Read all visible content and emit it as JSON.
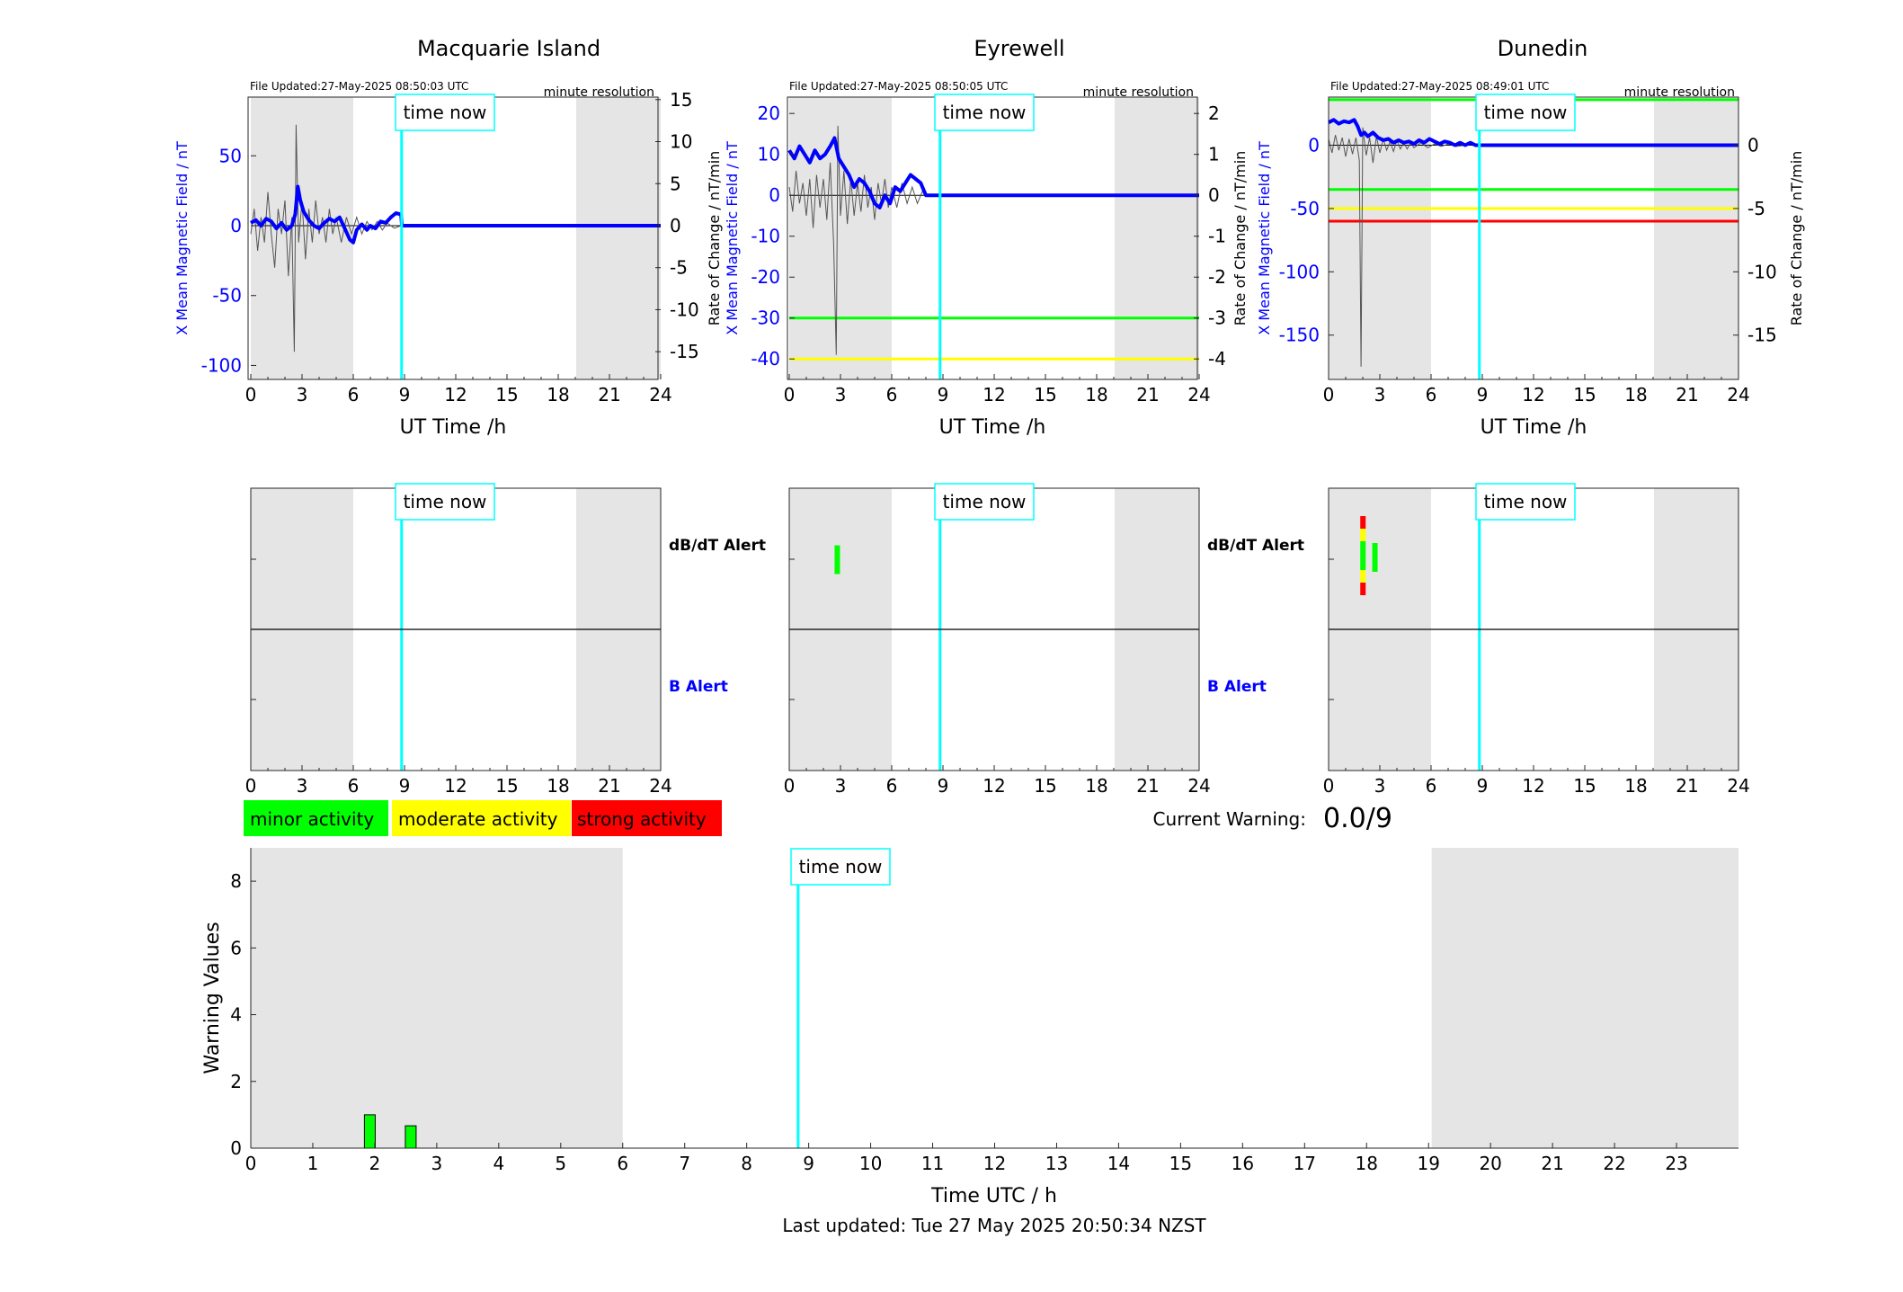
{
  "labels": {
    "time_now": "time now",
    "minute_resolution": "minute resolution",
    "utc_xlabel": "UT Time /h",
    "left_ylabel": "X Mean Magnetic Field / nT",
    "right_ylabel": "Rate of Change / nT/min",
    "dbdt_alert": "dB/dT Alert",
    "b_alert": "B Alert",
    "current_warning_label": "Current Warning:",
    "current_warning_value": "0.0/9",
    "bottom_xlabel": "Time UTC / h",
    "bottom_ylabel": "Warning Values",
    "last_updated": "Last updated: Tue 27 May 2025 20:50:34 NZST"
  },
  "legend": [
    {
      "label": "minor activity",
      "color": "#00ff00"
    },
    {
      "label": "moderate activity",
      "color": "#ffff00"
    },
    {
      "label": "strong activity",
      "color": "#ff0000"
    }
  ],
  "colors": {
    "field": "#0000ff",
    "rate": "#555555",
    "time_now": "#00ffff",
    "night_shading": "#e5e5e5",
    "green_threshold": "#00ff00",
    "yellow_threshold": "#ffff00",
    "red_threshold": "#ff0000"
  },
  "chart_data": [
    {
      "type": "line",
      "title": "Macquarie Island",
      "file_updated": "File Updated:27-May-2025 08:50:03 UTC",
      "xlabel": "UT Time /h",
      "ylabel": "X Mean Magnetic Field / nT",
      "ylabel_right": "Rate of Change / nT/min",
      "xlim": [
        0,
        24
      ],
      "ylim": [
        -110,
        92
      ],
      "ylim_right": [
        -18.3,
        15.3
      ],
      "xticks": [
        0,
        3,
        6,
        9,
        12,
        15,
        18,
        21,
        24
      ],
      "yticks": [
        -100,
        -50,
        0,
        50
      ],
      "yticks_right": [
        -15,
        -10,
        -5,
        0,
        5,
        10,
        15
      ],
      "night": [
        [
          0,
          6
        ],
        [
          19.05,
          24
        ]
      ],
      "time_now": 8.83,
      "thresholds": [],
      "field": [
        [
          0,
          2
        ],
        [
          0.3,
          4
        ],
        [
          0.6,
          0
        ],
        [
          0.9,
          5
        ],
        [
          1.2,
          3
        ],
        [
          1.5,
          -2
        ],
        [
          1.8,
          2
        ],
        [
          2.1,
          -3
        ],
        [
          2.4,
          0
        ],
        [
          2.6,
          8
        ],
        [
          2.75,
          28
        ],
        [
          2.9,
          18
        ],
        [
          3.1,
          10
        ],
        [
          3.4,
          4
        ],
        [
          3.7,
          0
        ],
        [
          4.0,
          -2
        ],
        [
          4.3,
          2
        ],
        [
          4.6,
          5
        ],
        [
          4.9,
          3
        ],
        [
          5.2,
          6
        ],
        [
          5.5,
          -2
        ],
        [
          5.8,
          -10
        ],
        [
          6.0,
          -12
        ],
        [
          6.2,
          -3
        ],
        [
          6.5,
          1
        ],
        [
          6.8,
          -3
        ],
        [
          7.0,
          0
        ],
        [
          7.3,
          -2
        ],
        [
          7.6,
          3
        ],
        [
          7.9,
          2
        ],
        [
          8.2,
          6
        ],
        [
          8.5,
          9
        ],
        [
          8.8,
          8
        ],
        [
          8.85,
          0
        ],
        [
          24,
          0
        ]
      ],
      "rate": [
        [
          0,
          -1
        ],
        [
          0.2,
          2
        ],
        [
          0.4,
          -3
        ],
        [
          0.6,
          1
        ],
        [
          0.8,
          -2
        ],
        [
          1.0,
          4
        ],
        [
          1.2,
          -1
        ],
        [
          1.4,
          -5
        ],
        [
          1.6,
          2
        ],
        [
          1.8,
          -1
        ],
        [
          2.0,
          3
        ],
        [
          2.2,
          -6
        ],
        [
          2.4,
          1
        ],
        [
          2.55,
          -15
        ],
        [
          2.65,
          12
        ],
        [
          2.8,
          -2
        ],
        [
          3.0,
          3
        ],
        [
          3.2,
          -4
        ],
        [
          3.4,
          2
        ],
        [
          3.6,
          -2
        ],
        [
          3.8,
          3
        ],
        [
          4.0,
          -1
        ],
        [
          4.2,
          1
        ],
        [
          4.4,
          -2
        ],
        [
          4.6,
          2
        ],
        [
          4.8,
          -1
        ],
        [
          5.0,
          1
        ],
        [
          5.3,
          -2
        ],
        [
          5.6,
          1
        ],
        [
          5.9,
          -1
        ],
        [
          6.2,
          1
        ],
        [
          6.5,
          -1
        ],
        [
          6.8,
          0.5
        ],
        [
          7.1,
          -0.5
        ],
        [
          7.4,
          0.5
        ],
        [
          7.7,
          -0.5
        ],
        [
          8.0,
          0.3
        ],
        [
          8.4,
          -0.3
        ],
        [
          8.8,
          0
        ]
      ],
      "db_alerts": [],
      "b_alerts": []
    },
    {
      "type": "line",
      "title": "Eyrewell",
      "file_updated": "File Updated:27-May-2025 08:50:05 UTC",
      "xlabel": "UT Time /h",
      "ylabel": "X Mean Magnetic Field / nT",
      "ylabel_right": "Rate of Change / nT/min",
      "xlim": [
        0,
        24
      ],
      "ylim": [
        -45,
        24
      ],
      "ylim_right": [
        -4.5,
        2.4
      ],
      "xticks": [
        0,
        3,
        6,
        9,
        12,
        15,
        18,
        21,
        24
      ],
      "yticks": [
        -40,
        -30,
        -20,
        -10,
        0,
        10,
        20
      ],
      "yticks_right": [
        -4,
        -3,
        -2,
        -1,
        0,
        1,
        2
      ],
      "night": [
        [
          0,
          6
        ],
        [
          19.05,
          24
        ]
      ],
      "time_now": 8.83,
      "thresholds": [
        {
          "value": -30,
          "color": "#00ff00"
        },
        {
          "value": -40,
          "color": "#ffff00"
        }
      ],
      "field": [
        [
          0,
          11
        ],
        [
          0.3,
          9
        ],
        [
          0.6,
          12
        ],
        [
          0.9,
          10
        ],
        [
          1.2,
          8
        ],
        [
          1.5,
          11
        ],
        [
          1.8,
          9
        ],
        [
          2.1,
          10
        ],
        [
          2.4,
          12
        ],
        [
          2.65,
          14
        ],
        [
          2.9,
          9
        ],
        [
          3.2,
          7
        ],
        [
          3.5,
          5
        ],
        [
          3.8,
          2
        ],
        [
          4.1,
          4
        ],
        [
          4.4,
          3
        ],
        [
          4.7,
          1
        ],
        [
          5.0,
          -2
        ],
        [
          5.3,
          -3
        ],
        [
          5.6,
          0
        ],
        [
          5.9,
          -2
        ],
        [
          6.2,
          2
        ],
        [
          6.5,
          1
        ],
        [
          6.8,
          3
        ],
        [
          7.1,
          5
        ],
        [
          7.4,
          4
        ],
        [
          7.7,
          3
        ],
        [
          7.9,
          1
        ],
        [
          8.0,
          0
        ],
        [
          24,
          0
        ]
      ],
      "rate": [
        [
          0,
          0.2
        ],
        [
          0.2,
          -0.4
        ],
        [
          0.4,
          0.6
        ],
        [
          0.6,
          -0.2
        ],
        [
          0.8,
          0.3
        ],
        [
          1.0,
          -0.5
        ],
        [
          1.2,
          0.4
        ],
        [
          1.4,
          -0.8
        ],
        [
          1.6,
          0.5
        ],
        [
          1.8,
          -0.3
        ],
        [
          2.0,
          0.4
        ],
        [
          2.2,
          -0.6
        ],
        [
          2.4,
          0.8
        ],
        [
          2.6,
          -1.2
        ],
        [
          2.75,
          -3.9
        ],
        [
          2.85,
          1.7
        ],
        [
          3.0,
          -0.5
        ],
        [
          3.2,
          0.6
        ],
        [
          3.4,
          -0.7
        ],
        [
          3.6,
          0.4
        ],
        [
          3.8,
          -0.5
        ],
        [
          4.0,
          0.3
        ],
        [
          4.2,
          -0.4
        ],
        [
          4.4,
          0.5
        ],
        [
          4.6,
          -0.3
        ],
        [
          4.8,
          0.2
        ],
        [
          5.0,
          -0.6
        ],
        [
          5.2,
          0.3
        ],
        [
          5.4,
          -0.2
        ],
        [
          5.6,
          0.4
        ],
        [
          5.8,
          -0.3
        ],
        [
          6.0,
          0.2
        ],
        [
          6.3,
          -0.3
        ],
        [
          6.6,
          0.3
        ],
        [
          6.9,
          -0.2
        ],
        [
          7.2,
          0.2
        ],
        [
          7.5,
          -0.2
        ],
        [
          7.8,
          0.1
        ],
        [
          8.0,
          0
        ]
      ],
      "db_alerts": [
        {
          "start": 2.55,
          "end": 2.85,
          "color": "#00ff00"
        }
      ],
      "b_alerts": []
    },
    {
      "type": "line",
      "title": "Dunedin",
      "file_updated": "File Updated:27-May-2025 08:49:01 UTC",
      "xlabel": "UT Time /h",
      "ylabel": "X Mean Magnetic Field / nT",
      "ylabel_right": "Rate of Change / nT/min",
      "xlim": [
        0,
        24
      ],
      "ylim": [
        -185,
        38
      ],
      "ylim_right": [
        -18.5,
        3.8
      ],
      "xticks": [
        0,
        3,
        6,
        9,
        12,
        15,
        18,
        21,
        24
      ],
      "yticks": [
        -150,
        -100,
        -50,
        0
      ],
      "yticks_right": [
        -15,
        -10,
        -5,
        0
      ],
      "night": [
        [
          0,
          6
        ],
        [
          19.05,
          24
        ]
      ],
      "time_now": 8.83,
      "thresholds": [
        {
          "value": 36,
          "color": "#00ff00"
        },
        {
          "value": -35,
          "color": "#00ff00"
        },
        {
          "value": -50,
          "color": "#ffff00"
        },
        {
          "value": -60,
          "color": "#ff0000"
        }
      ],
      "field": [
        [
          0,
          18
        ],
        [
          0.3,
          20
        ],
        [
          0.6,
          17
        ],
        [
          0.9,
          19
        ],
        [
          1.2,
          18
        ],
        [
          1.5,
          20
        ],
        [
          1.7,
          15
        ],
        [
          1.9,
          8
        ],
        [
          2.1,
          10
        ],
        [
          2.3,
          7
        ],
        [
          2.6,
          10
        ],
        [
          2.9,
          6
        ],
        [
          3.2,
          4
        ],
        [
          3.5,
          5
        ],
        [
          3.8,
          2
        ],
        [
          4.1,
          4
        ],
        [
          4.4,
          2
        ],
        [
          4.7,
          3
        ],
        [
          5.0,
          1
        ],
        [
          5.3,
          4
        ],
        [
          5.6,
          2
        ],
        [
          5.9,
          5
        ],
        [
          6.2,
          3
        ],
        [
          6.5,
          1
        ],
        [
          6.8,
          3
        ],
        [
          7.1,
          2
        ],
        [
          7.4,
          0
        ],
        [
          7.7,
          2
        ],
        [
          8.0,
          0
        ],
        [
          8.3,
          2
        ],
        [
          8.6,
          0
        ],
        [
          8.8,
          0
        ],
        [
          24,
          0
        ]
      ],
      "rate": [
        [
          0,
          0.5
        ],
        [
          0.2,
          -0.6
        ],
        [
          0.4,
          0.8
        ],
        [
          0.6,
          -0.4
        ],
        [
          0.8,
          0.6
        ],
        [
          1.0,
          -0.9
        ],
        [
          1.2,
          0.5
        ],
        [
          1.4,
          -0.7
        ],
        [
          1.6,
          0.6
        ],
        [
          1.8,
          -1.2
        ],
        [
          1.9,
          -17.5
        ],
        [
          2.0,
          1.4
        ],
        [
          2.2,
          -0.8
        ],
        [
          2.4,
          0.6
        ],
        [
          2.6,
          -1.4
        ],
        [
          2.8,
          0.7
        ],
        [
          3.0,
          -0.6
        ],
        [
          3.2,
          0.5
        ],
        [
          3.4,
          -0.4
        ],
        [
          3.6,
          0.3
        ],
        [
          3.8,
          -0.5
        ],
        [
          4.0,
          0.4
        ],
        [
          4.2,
          -0.3
        ],
        [
          4.4,
          0.2
        ],
        [
          4.6,
          -0.3
        ],
        [
          4.8,
          0.2
        ],
        [
          5.0,
          -0.2
        ],
        [
          5.4,
          0.2
        ],
        [
          5.8,
          -0.2
        ],
        [
          6.2,
          0.1
        ],
        [
          6.6,
          -0.1
        ],
        [
          7.0,
          0.1
        ],
        [
          7.5,
          -0.1
        ],
        [
          8.0,
          0
        ]
      ],
      "db_alerts": [
        {
          "start": 1.75,
          "end": 2.0,
          "color": "#ff0000"
        },
        {
          "start": 1.75,
          "end": 2.0,
          "color": "#ffff00"
        },
        {
          "start": 1.75,
          "end": 2.0,
          "color": "#00ff00"
        },
        {
          "start": 2.45,
          "end": 2.75,
          "color": "#00ff00"
        }
      ],
      "b_alerts": []
    },
    {
      "type": "bar",
      "title": "",
      "xlabel": "Time UTC / h",
      "ylabel": "Warning Values",
      "xlim": [
        0,
        24
      ],
      "ylim": [
        0,
        9
      ],
      "xticks": [
        0,
        1,
        2,
        3,
        4,
        5,
        6,
        7,
        8,
        9,
        10,
        11,
        12,
        13,
        14,
        15,
        16,
        17,
        18,
        19,
        20,
        21,
        22,
        23
      ],
      "yticks": [
        0,
        2,
        4,
        6,
        8
      ],
      "night": [
        [
          0,
          6
        ],
        [
          19.05,
          24
        ]
      ],
      "time_now": 8.83,
      "bars": [
        {
          "x": 1.92,
          "value": 1.0,
          "color": "#00ff00"
        },
        {
          "x": 2.58,
          "value": 0.67,
          "color": "#00ff00"
        }
      ]
    }
  ]
}
